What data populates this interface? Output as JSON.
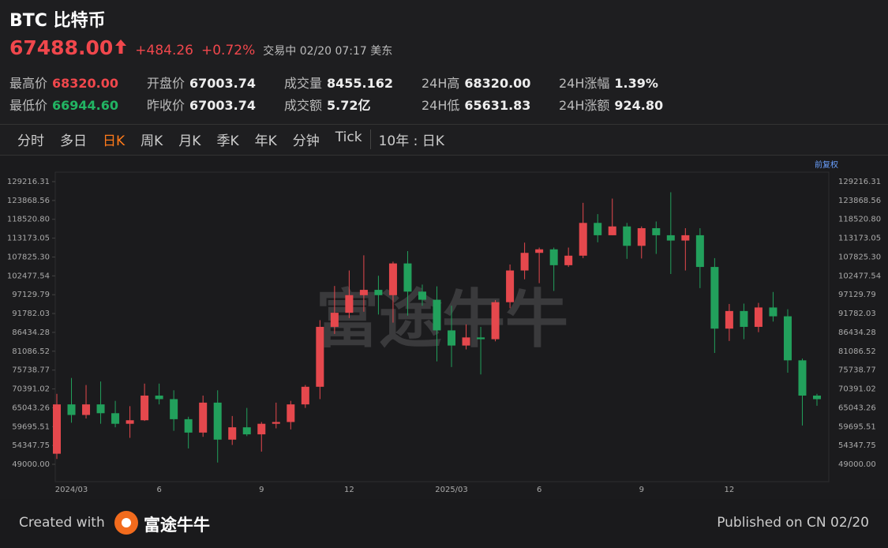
{
  "header": {
    "title": "BTC 比特币",
    "price": "67488.00",
    "change": "+484.26",
    "change_pct": "+0.72%",
    "status": "交易中 02/20 07:17 美东"
  },
  "stats": [
    [
      {
        "label": "最高价",
        "value": "68320.00"
      },
      {
        "label": "开盘价",
        "value": "67003.74"
      },
      {
        "label": "成交量",
        "value": "8455.162"
      },
      {
        "label": "24H高",
        "value": "68320.00"
      },
      {
        "label": "24H涨幅",
        "value": "1.39%"
      }
    ],
    [
      {
        "label": "最低价",
        "value": "66944.60"
      },
      {
        "label": "昨收价",
        "value": "67003.74"
      },
      {
        "label": "成交额",
        "value": "5.72亿"
      },
      {
        "label": "24H低",
        "value": "65631.83"
      },
      {
        "label": "24H涨额",
        "value": "924.80"
      }
    ]
  ],
  "tabs": [
    "分时",
    "多日",
    "日K",
    "周K",
    "月K",
    "季K",
    "年K",
    "分钟",
    "Tick"
  ],
  "period": "10年 : 日K",
  "adjust": "前复权",
  "watermark": "富途牛牛",
  "chart_data": {
    "type": "candlestick",
    "up_color": "#e5484d",
    "down_color": "#22a05c",
    "categories": [
      null,
      "2024/03",
      null,
      null,
      null,
      null,
      null,
      "6",
      null,
      null,
      null,
      null,
      null,
      null,
      "9",
      null,
      null,
      null,
      null,
      null,
      "12",
      null,
      null,
      null,
      null,
      null,
      null,
      "2025/03",
      null,
      null,
      null,
      null,
      null,
      "6",
      null,
      null,
      null,
      null,
      null,
      null,
      "9",
      null,
      null,
      null,
      null,
      null,
      "12",
      null,
      null,
      null,
      null,
      null,
      null
    ],
    "open": [
      52000,
      66000,
      63000,
      66000,
      63500,
      60500,
      61500,
      68500,
      67500,
      61800,
      58000,
      66500,
      56000,
      59500,
      57500,
      60500,
      61000,
      66000,
      71000,
      88000,
      92000,
      97000,
      98500,
      97000,
      106000,
      98000,
      95700,
      87000,
      82700,
      85000,
      84500,
      95000,
      104000,
      109000,
      110000,
      105500,
      108200,
      117500,
      114000,
      116500,
      111000,
      116000,
      114000,
      112500,
      114000,
      105000,
      87500,
      92500,
      88000,
      93500,
      91000,
      78500,
      68500
    ],
    "high": [
      69000,
      73500,
      71500,
      72500,
      67000,
      65500,
      71900,
      71900,
      70000,
      62500,
      68500,
      70000,
      62700,
      65000,
      61000,
      66500,
      67000,
      71500,
      89900,
      99600,
      104000,
      108300,
      102500,
      106500,
      109500,
      100000,
      99500,
      94000,
      88700,
      88000,
      95600,
      105700,
      111900,
      110500,
      110500,
      110500,
      123200,
      120000,
      124400,
      117500,
      116500,
      117900,
      126200,
      116000,
      116000,
      107500,
      94500,
      94600,
      94800,
      97900,
      93000,
      79000,
      69000
    ],
    "low": [
      50500,
      60800,
      62000,
      60500,
      59500,
      56500,
      61300,
      66000,
      58500,
      53500,
      56800,
      49500,
      54500,
      57000,
      52600,
      59200,
      58900,
      65000,
      67500,
      86000,
      90500,
      92300,
      91500,
      89200,
      91200,
      94000,
      78200,
      76600,
      81600,
      74500,
      83900,
      93300,
      101500,
      100400,
      98200,
      105000,
      107500,
      112000,
      114000,
      107300,
      107400,
      108700,
      103000,
      104000,
      99000,
      80600,
      84000,
      84500,
      86500,
      89500,
      75000,
      60000,
      65600
    ],
    "close": [
      66000,
      63000,
      66000,
      63500,
      60500,
      61500,
      68500,
      67500,
      61800,
      58000,
      66500,
      56000,
      59500,
      57500,
      60500,
      61000,
      66000,
      71000,
      88000,
      92000,
      97000,
      98500,
      97000,
      106000,
      98000,
      95700,
      87000,
      82700,
      85000,
      84500,
      95000,
      104000,
      109000,
      110000,
      105500,
      108200,
      117500,
      114000,
      116500,
      111000,
      116000,
      114000,
      112500,
      114000,
      105000,
      87500,
      92500,
      88000,
      93500,
      91000,
      78500,
      68500,
      67488
    ],
    "ylim": [
      44072,
      131905
    ],
    "yticks": [
      129216.31,
      123868.56,
      {
        "value": 118520.8,
        "label": "118520.80"
      },
      113173.05,
      {
        "value": 107825.3,
        "label": "107825.30"
      },
      102477.54,
      97129.79,
      91782.03,
      86434.28,
      81086.52,
      75738.77,
      70391.02,
      65043.26,
      59695.51,
      54347.75,
      {
        "value": 49000,
        "label": "49000.00"
      }
    ]
  },
  "footer": {
    "created": "Created with",
    "brand": "富途牛牛",
    "published": "Published on CN 02/20"
  }
}
